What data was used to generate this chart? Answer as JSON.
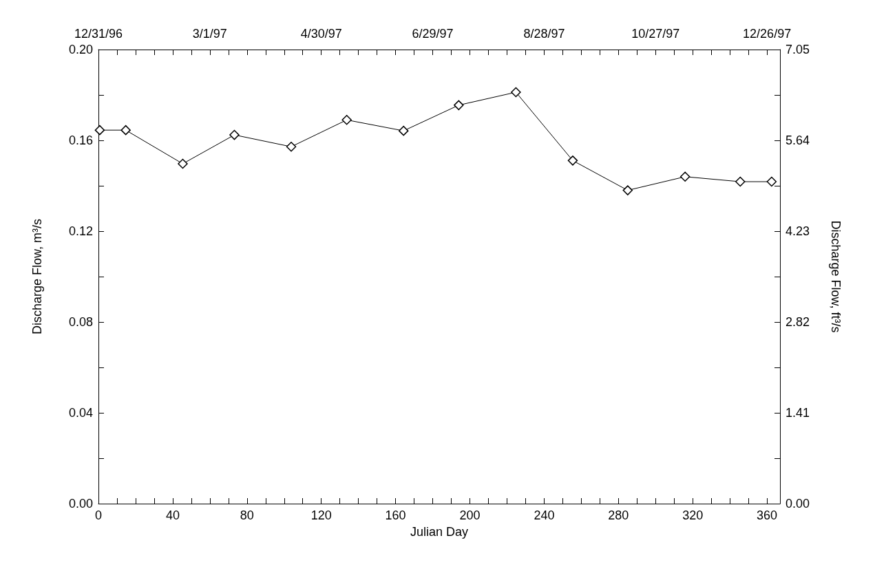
{
  "chart_data": {
    "type": "line",
    "xlabel": "Julian Day",
    "ylabel": "Discharge Flow, m³/s",
    "y2label": "Discharge Flow, ft³/s",
    "x": [
      0.7,
      14.7,
      45.4,
      73.2,
      103.8,
      133.7,
      164.3,
      194,
      224.8,
      255.4,
      285,
      315.9,
      345.6,
      362.5
    ],
    "series": [
      {
        "color": "#000000",
        "values": [
          0.1645,
          0.1645,
          0.1497,
          0.1624,
          0.1572,
          0.169,
          0.1642,
          0.1755,
          0.1812,
          0.1511,
          0.138,
          0.144,
          0.1418,
          0.1418
        ]
      }
    ],
    "xlim": [
      0,
      367
    ],
    "xticks": [
      0,
      {
        "value": 10,
        "label": null
      },
      {
        "value": 20,
        "label": null
      },
      {
        "value": 30,
        "label": null
      },
      40,
      {
        "value": 50,
        "label": null
      },
      {
        "value": 60,
        "label": null
      },
      {
        "value": 70,
        "label": null
      },
      80,
      {
        "value": 90,
        "label": null
      },
      {
        "value": 100,
        "label": null
      },
      {
        "value": 110,
        "label": null
      },
      120,
      {
        "value": 130,
        "label": null
      },
      {
        "value": 140,
        "label": null
      },
      {
        "value": 150,
        "label": null
      },
      160,
      {
        "value": 170,
        "label": null
      },
      {
        "value": 180,
        "label": null
      },
      {
        "value": 190,
        "label": null
      },
      200,
      {
        "value": 210,
        "label": null
      },
      {
        "value": 220,
        "label": null
      },
      {
        "value": 230,
        "label": null
      },
      240,
      {
        "value": 250,
        "label": null
      },
      {
        "value": 260,
        "label": null
      },
      {
        "value": 270,
        "label": null
      },
      280,
      {
        "value": 290,
        "label": null
      },
      {
        "value": 300,
        "label": null
      },
      {
        "value": 310,
        "label": null
      },
      320,
      {
        "value": 330,
        "label": null
      },
      {
        "value": 340,
        "label": null
      },
      {
        "value": 350,
        "label": null
      },
      360
    ],
    "x2lim": [
      "1996-12-31",
      "1998-01-02"
    ],
    "x2ticks": [
      {
        "value": "1996-12-31",
        "label": "12/31/96"
      },
      {
        "value": "1997-01-10",
        "label": null
      },
      {
        "value": "1997-01-20",
        "label": null
      },
      {
        "value": "1997-01-30",
        "label": null
      },
      {
        "value": "1997-02-09",
        "label": null
      },
      {
        "value": "1997-02-19",
        "label": null
      },
      {
        "value": "1997-03-01",
        "label": "3/1/97"
      },
      {
        "value": "1997-03-11",
        "label": null
      },
      {
        "value": "1997-03-21",
        "label": null
      },
      {
        "value": "1997-03-31",
        "label": null
      },
      {
        "value": "1997-04-10",
        "label": null
      },
      {
        "value": "1997-04-20",
        "label": null
      },
      {
        "value": "1997-04-30",
        "label": "4/30/97"
      },
      {
        "value": "1997-05-10",
        "label": null
      },
      {
        "value": "1997-05-20",
        "label": null
      },
      {
        "value": "1997-05-30",
        "label": null
      },
      {
        "value": "1997-06-09",
        "label": null
      },
      {
        "value": "1997-06-19",
        "label": null
      },
      {
        "value": "1997-06-29",
        "label": "6/29/97"
      },
      {
        "value": "1997-07-09",
        "label": null
      },
      {
        "value": "1997-07-19",
        "label": null
      },
      {
        "value": "1997-07-29",
        "label": null
      },
      {
        "value": "1997-08-08",
        "label": null
      },
      {
        "value": "1997-08-18",
        "label": null
      },
      {
        "value": "1997-08-28",
        "label": "8/28/97"
      },
      {
        "value": "1997-09-07",
        "label": null
      },
      {
        "value": "1997-09-17",
        "label": null
      },
      {
        "value": "1997-09-27",
        "label": null
      },
      {
        "value": "1997-10-07",
        "label": null
      },
      {
        "value": "1997-10-17",
        "label": null
      },
      {
        "value": "1997-10-27",
        "label": "10/27/97"
      },
      {
        "value": "1997-11-06",
        "label": null
      },
      {
        "value": "1997-11-16",
        "label": null
      },
      {
        "value": "1997-11-26",
        "label": null
      },
      {
        "value": "1997-12-06",
        "label": null
      },
      {
        "value": "1997-12-16",
        "label": null
      },
      {
        "value": "1997-12-26",
        "label": "12/26/97"
      }
    ],
    "ylim": [
      0,
      0.2
    ],
    "yticks": [
      {
        "value": 0,
        "label": "0.00"
      },
      {
        "value": 0.02,
        "label": null
      },
      0.04,
      {
        "value": 0.06,
        "label": null
      },
      0.08,
      {
        "value": 0.1,
        "label": null
      },
      0.12,
      {
        "value": 0.14,
        "label": null
      },
      0.16,
      {
        "value": 0.18,
        "label": null
      },
      {
        "value": 0.2,
        "label": "0.20"
      }
    ],
    "y2lim": [
      0,
      7.05
    ],
    "y2ticks": [
      {
        "value": 0,
        "label": "0.00"
      },
      {
        "value": 0.705,
        "label": null
      },
      1.41,
      {
        "value": 2.115,
        "label": null
      },
      2.82,
      {
        "value": 3.525,
        "label": null
      },
      4.23,
      {
        "value": 4.935,
        "label": null
      },
      5.64,
      {
        "value": 6.345,
        "label": null
      },
      7.05
    ],
    "marker": "diamond",
    "line_style": "solid",
    "grid": false
  }
}
